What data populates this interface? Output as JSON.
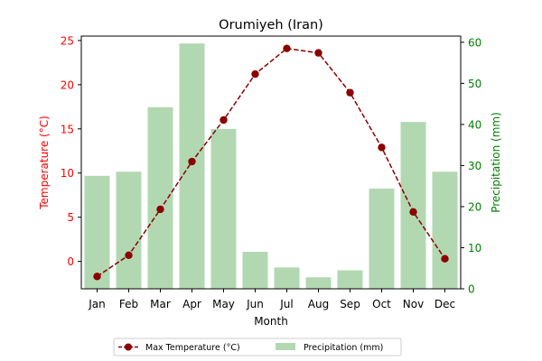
{
  "chart_data": {
    "type": "bar+line",
    "title": "Orumiyeh (Iran)",
    "xlabel": "Month",
    "ylabel_left": "Temperature (°C)",
    "ylabel_right": "Precipitation (mm)",
    "categories": [
      "Jan",
      "Feb",
      "Mar",
      "Apr",
      "May",
      "Jun",
      "Jul",
      "Aug",
      "Sep",
      "Oct",
      "Nov",
      "Dec"
    ],
    "series": [
      {
        "name": "Max Temperature (°C)",
        "type": "line",
        "axis": "left",
        "color": "#8b0000",
        "values": [
          -1.7,
          0.7,
          5.9,
          11.3,
          16.0,
          21.2,
          24.1,
          23.6,
          19.1,
          12.9,
          5.6,
          0.3
        ]
      },
      {
        "name": "Precipitation (mm)",
        "type": "bar",
        "axis": "right",
        "color": "#b2d8b2",
        "values": [
          27.5,
          28.5,
          44.2,
          59.7,
          38.9,
          9.0,
          5.2,
          2.8,
          4.5,
          24.4,
          40.6,
          28.5
        ]
      }
    ],
    "ylim_left": [
      -3.1,
      25.5
    ],
    "ylim_right": [
      0,
      61.5
    ],
    "yticks_left": [
      0,
      5,
      10,
      15,
      20,
      25
    ],
    "yticks_right": [
      0,
      10,
      20,
      30,
      40,
      50,
      60
    ],
    "left_axis_color": "#ff0000",
    "right_axis_color": "#008000",
    "legend_position": "bottom-center",
    "grid": false
  }
}
